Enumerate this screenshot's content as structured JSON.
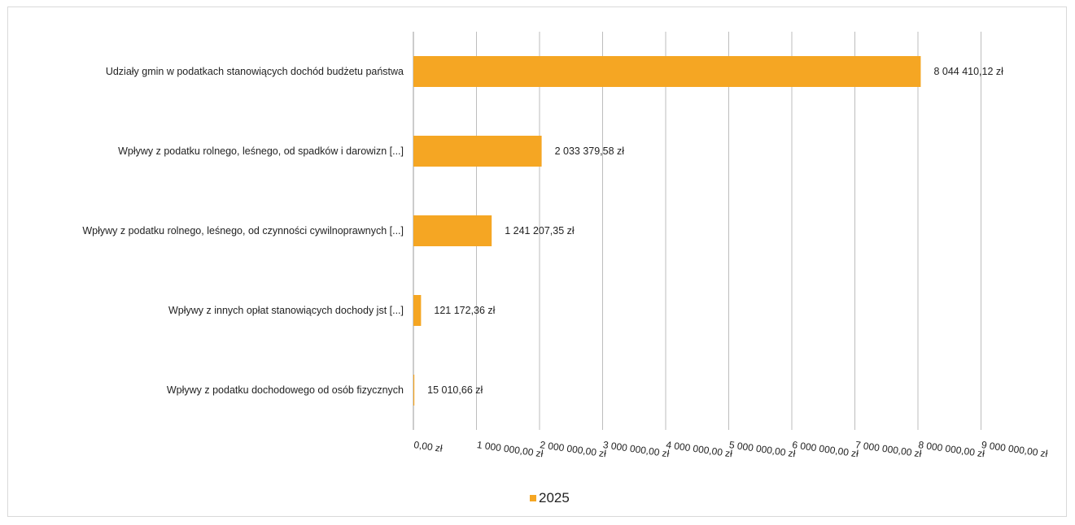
{
  "chart_data": {
    "type": "bar",
    "orientation": "horizontal",
    "title": "",
    "xlabel": "",
    "ylabel": "",
    "categories": [
      "Udziały gmin w podatkach stanowiących dochód budżetu państwa",
      "Wpływy z podatku rolnego, leśnego, od spadków i darowizn [...]",
      "Wpływy z podatku rolnego, leśnego, od czynności cywilnoprawnych [...]",
      "Wpływy z innych opłat stanowiących dochody jst [...]",
      "Wpływy z podatku dochodowego od osób fizycznych"
    ],
    "series": [
      {
        "name": "2025",
        "color": "#f5a623",
        "values": [
          8044410.12,
          2033379.58,
          1241207.35,
          121172.36,
          15010.66
        ],
        "value_labels": [
          "8 044 410,12 zł",
          "2 033 379,58 zł",
          "1 241 207,35 zł",
          "121 172,36 zł",
          "15 010,66 zł"
        ]
      }
    ],
    "xlim": [
      0,
      9000000
    ],
    "x_ticks": [
      0,
      1000000,
      2000000,
      3000000,
      4000000,
      5000000,
      6000000,
      7000000,
      8000000,
      9000000
    ],
    "x_tick_labels": [
      "0,00 zł",
      "1 000 000,00 zł",
      "2 000 000,00 zł",
      "3 000 000,00 zł",
      "4 000 000,00 zł",
      "5 000 000,00 zł",
      "6 000 000,00 zł",
      "7 000 000,00 zł",
      "8 000 000,00 zł",
      "9 000 000,00 zł"
    ],
    "grid": true,
    "legend": {
      "position": "bottom",
      "entries": [
        "2025"
      ]
    }
  }
}
